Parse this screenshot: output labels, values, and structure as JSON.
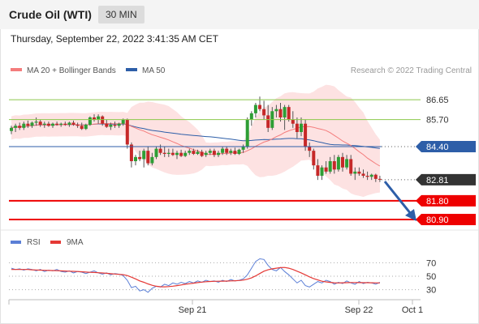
{
  "header": {
    "title": "Crude Oil (WTI)",
    "interval": "30 MIN"
  },
  "timestamp": "Thursday, September 22, 2022 3:41:35 AM CET",
  "credit": "Research © 2022 Trading Central",
  "colors": {
    "bollinger": "#f47c7c",
    "ma50": "#2d5ea8",
    "up": "#2e9e35",
    "down": "#c62828",
    "band_fill": "#fde2e2",
    "green_level": "#8cc84b",
    "red_level": "#ee0000",
    "current": "#333333",
    "rsi": "#5b7fd6",
    "rsi_ma": "#e53935"
  },
  "chart_data": [
    {
      "type": "candlestick",
      "name": "price",
      "legend": [
        {
          "label": "MA 20 + Bollinger Bands",
          "color": "#f47c7c"
        },
        {
          "label": "MA 50",
          "color": "#2d5ea8"
        }
      ],
      "levels": [
        {
          "value": "86.65",
          "kind": "resistance"
        },
        {
          "value": "85.70",
          "kind": "resistance"
        },
        {
          "value": "84.40",
          "kind": "pivot"
        },
        {
          "value": "82.81",
          "kind": "current"
        },
        {
          "value": "81.80",
          "kind": "support"
        },
        {
          "value": "80.90",
          "kind": "support"
        }
      ],
      "ylim": [
        80.55,
        87.55
      ],
      "bars": [
        [
          85.15,
          85.4,
          85.0,
          85.3
        ],
        [
          85.3,
          85.5,
          85.1,
          85.4
        ],
        [
          85.4,
          85.55,
          85.2,
          85.3
        ],
        [
          85.3,
          85.6,
          85.2,
          85.5
        ],
        [
          85.5,
          85.65,
          85.3,
          85.4
        ],
        [
          85.4,
          85.6,
          85.3,
          85.55
        ],
        [
          85.55,
          85.8,
          85.4,
          85.6
        ],
        [
          85.6,
          85.7,
          85.35,
          85.45
        ],
        [
          85.45,
          85.6,
          85.3,
          85.5
        ],
        [
          85.5,
          85.6,
          85.35,
          85.4
        ],
        [
          85.4,
          85.55,
          85.3,
          85.5
        ],
        [
          85.5,
          85.6,
          85.4,
          85.45
        ],
        [
          85.45,
          85.55,
          85.35,
          85.5
        ],
        [
          85.5,
          85.6,
          85.4,
          85.45
        ],
        [
          85.45,
          85.6,
          85.35,
          85.55
        ],
        [
          85.55,
          85.65,
          85.4,
          85.45
        ],
        [
          85.45,
          85.55,
          85.3,
          85.4
        ],
        [
          85.4,
          85.55,
          85.2,
          85.25
        ],
        [
          85.25,
          85.5,
          85.2,
          85.45
        ],
        [
          85.45,
          85.85,
          85.4,
          85.8
        ],
        [
          85.8,
          85.95,
          85.6,
          85.7
        ],
        [
          85.7,
          85.95,
          85.5,
          85.85
        ],
        [
          85.85,
          85.9,
          85.4,
          85.5
        ],
        [
          85.5,
          85.7,
          85.3,
          85.35
        ],
        [
          85.35,
          85.55,
          85.2,
          85.45
        ],
        [
          85.45,
          85.6,
          85.3,
          85.4
        ],
        [
          85.4,
          85.55,
          85.3,
          85.5
        ],
        [
          85.5,
          85.75,
          85.4,
          85.7
        ],
        [
          85.7,
          85.75,
          84.3,
          84.5
        ],
        [
          84.5,
          84.6,
          83.4,
          83.7
        ],
        [
          83.7,
          84.0,
          83.5,
          83.9
        ],
        [
          83.9,
          84.2,
          83.7,
          83.8
        ],
        [
          83.8,
          84.3,
          83.4,
          84.2
        ],
        [
          84.2,
          84.4,
          83.5,
          83.6
        ],
        [
          83.6,
          84.1,
          83.5,
          83.9
        ],
        [
          83.9,
          84.4,
          83.8,
          84.3
        ],
        [
          84.3,
          84.5,
          84.0,
          84.1
        ],
        [
          84.1,
          84.4,
          83.9,
          84.05
        ],
        [
          84.05,
          84.3,
          83.9,
          84.1
        ],
        [
          84.1,
          84.3,
          83.95,
          84.0
        ],
        [
          84.0,
          84.2,
          83.8,
          84.1
        ],
        [
          84.1,
          84.25,
          83.9,
          83.95
        ],
        [
          83.95,
          84.2,
          83.9,
          84.1
        ],
        [
          84.1,
          84.3,
          84.0,
          84.2
        ],
        [
          84.2,
          84.3,
          84.0,
          84.05
        ],
        [
          84.05,
          84.25,
          84.0,
          84.15
        ],
        [
          84.15,
          84.25,
          83.9,
          83.95
        ],
        [
          84.0,
          84.2,
          83.9,
          84.1
        ],
        [
          84.1,
          84.3,
          84.0,
          84.2
        ],
        [
          84.2,
          84.3,
          83.9,
          84.0
        ],
        [
          84.0,
          84.2,
          83.9,
          84.1
        ],
        [
          84.1,
          84.4,
          84.0,
          84.3
        ],
        [
          84.3,
          84.4,
          84.0,
          84.1
        ],
        [
          84.1,
          84.3,
          84.0,
          84.2
        ],
        [
          84.2,
          84.35,
          84.0,
          84.05
        ],
        [
          84.05,
          84.3,
          84.0,
          84.25
        ],
        [
          84.25,
          84.5,
          84.1,
          84.4
        ],
        [
          84.4,
          85.8,
          84.3,
          85.7
        ],
        [
          85.7,
          86.1,
          85.4,
          86.0
        ],
        [
          86.0,
          86.5,
          85.8,
          86.4
        ],
        [
          86.4,
          86.8,
          86.1,
          86.2
        ],
        [
          86.2,
          86.6,
          85.7,
          85.9
        ],
        [
          85.9,
          86.4,
          85.1,
          85.3
        ],
        [
          85.3,
          86.3,
          85.2,
          86.1
        ],
        [
          86.1,
          86.4,
          85.8,
          86.2
        ],
        [
          86.2,
          86.5,
          85.6,
          85.8
        ],
        [
          85.8,
          86.4,
          85.2,
          86.3
        ],
        [
          86.3,
          86.4,
          85.6,
          85.7
        ],
        [
          85.7,
          86.1,
          85.3,
          85.5
        ],
        [
          85.5,
          85.8,
          84.8,
          85.1
        ],
        [
          85.1,
          85.8,
          84.9,
          85.5
        ],
        [
          85.5,
          85.7,
          84.2,
          84.4
        ],
        [
          84.4,
          84.6,
          83.9,
          84.2
        ],
        [
          84.2,
          84.3,
          83.3,
          83.5
        ],
        [
          83.5,
          83.8,
          82.8,
          83.0
        ],
        [
          83.0,
          83.5,
          82.8,
          83.4
        ],
        [
          83.4,
          83.7,
          83.1,
          83.2
        ],
        [
          83.2,
          83.9,
          83.1,
          83.7
        ],
        [
          83.7,
          84.0,
          83.1,
          83.3
        ],
        [
          83.3,
          84.0,
          83.2,
          83.9
        ],
        [
          83.9,
          84.1,
          83.2,
          83.4
        ],
        [
          83.4,
          84.0,
          83.3,
          83.8
        ],
        [
          83.8,
          84.0,
          83.0,
          83.1
        ],
        [
          83.1,
          83.4,
          82.8,
          83.2
        ],
        [
          83.2,
          83.4,
          83.0,
          83.1
        ],
        [
          83.1,
          83.3,
          82.9,
          83.0
        ],
        [
          83.0,
          83.2,
          82.8,
          82.95
        ],
        [
          82.95,
          83.1,
          82.8,
          83.05
        ],
        [
          83.05,
          83.1,
          82.7,
          82.85
        ],
        [
          82.85,
          83.0,
          82.7,
          82.81
        ]
      ]
    },
    {
      "type": "line",
      "name": "RSI",
      "legend": [
        {
          "label": "RSI",
          "color": "#5b7fd6"
        },
        {
          "label": "9MA",
          "color": "#e53935"
        }
      ],
      "y_ticks": [
        "70",
        "50",
        "30"
      ],
      "ylim": [
        15,
        85
      ],
      "rsi": [
        62,
        60,
        61,
        59,
        61,
        60,
        58,
        60,
        57,
        59,
        58,
        60,
        57,
        56,
        58,
        55,
        57,
        56,
        54,
        56,
        58,
        55,
        53,
        55,
        52,
        54,
        53,
        51,
        44,
        33,
        35,
        28,
        30,
        26,
        32,
        35,
        34,
        38,
        36,
        40,
        38,
        41,
        39,
        42,
        40,
        43,
        41,
        44,
        42,
        43,
        41,
        44,
        42,
        45,
        43,
        44,
        46,
        52,
        62,
        72,
        76,
        75,
        66,
        60,
        58,
        63,
        57,
        52,
        46,
        40,
        44,
        36,
        34,
        38,
        42,
        40,
        44,
        42,
        38,
        41,
        39,
        43,
        40,
        38,
        42,
        39,
        41,
        40,
        38,
        41
      ],
      "rsi_ma": [
        60,
        60,
        60,
        60,
        60,
        59.5,
        59.3,
        59,
        58.8,
        58.6,
        58.4,
        58.2,
        58,
        57.7,
        57.5,
        57.2,
        57,
        56.6,
        56.2,
        55.8,
        55.6,
        55.2,
        54.8,
        54.3,
        53.8,
        53.2,
        52.8,
        52.3,
        51,
        48.5,
        46,
        43,
        41,
        38.5,
        36.5,
        35,
        34.3,
        34.2,
        34.5,
        35.2,
        36,
        37,
        38,
        38.8,
        39.6,
        40.5,
        41.2,
        41.8,
        42.2,
        42.4,
        42.5,
        42.6,
        42.7,
        43,
        43.3,
        43.6,
        44.2,
        45.5,
        47.5,
        50.5,
        54,
        57.5,
        59.5,
        61,
        62,
        62.8,
        63,
        62,
        60,
        57.5,
        55,
        52,
        49,
        46.5,
        44.5,
        42.5,
        41.5,
        40.8,
        40.2,
        40,
        40.2,
        40.4,
        40.6,
        40.6,
        40.5,
        40.4,
        40.3,
        40.2,
        40.1,
        40
      ]
    }
  ],
  "x_axis": {
    "labels": [
      "Sep 21",
      "Sep 22",
      "Oct 1"
    ]
  }
}
